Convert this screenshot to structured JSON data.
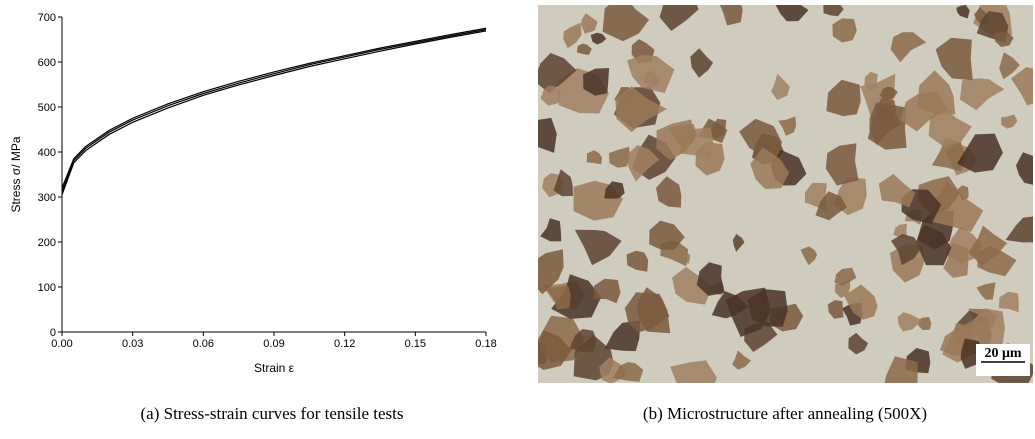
{
  "chart_data": {
    "type": "line",
    "xlabel": "Strain ε",
    "ylabel": "Stress σ/ MPa",
    "x": [
      0,
      0.005,
      0.01,
      0.02,
      0.03,
      0.045,
      0.06,
      0.075,
      0.09,
      0.105,
      0.12,
      0.135,
      0.15,
      0.165,
      0.18
    ],
    "series": [
      {
        "color": "#000000",
        "values": [
          312,
          381,
          408,
          444,
          471,
          503,
          530,
          553,
          574,
          594,
          611,
          628,
          643,
          658,
          672
        ]
      },
      {
        "color": "#000000",
        "values": [
          305,
          376,
          403,
          439,
          466,
          498,
          526,
          549,
          570,
          590,
          607,
          624,
          640,
          655,
          669
        ]
      },
      {
        "color": "#000000",
        "values": [
          320,
          385,
          412,
          448,
          475,
          507,
          534,
          557,
          578,
          597,
          614,
          631,
          646,
          661,
          675
        ]
      }
    ],
    "xlim": [
      0,
      0.18
    ],
    "ylim": [
      0,
      700
    ],
    "xticks": [
      {
        "value": 0,
        "label": "0.00"
      },
      0.03,
      0.06,
      0.09,
      0.12,
      0.15,
      0.18
    ],
    "yticks": [
      0,
      100,
      200,
      300,
      400,
      500,
      600,
      700
    ]
  },
  "captions": [
    "(a) Stress-strain curves for tensile tests",
    "(b) Microstructure after annealing (500X)"
  ],
  "scale_bar": "20 μm"
}
